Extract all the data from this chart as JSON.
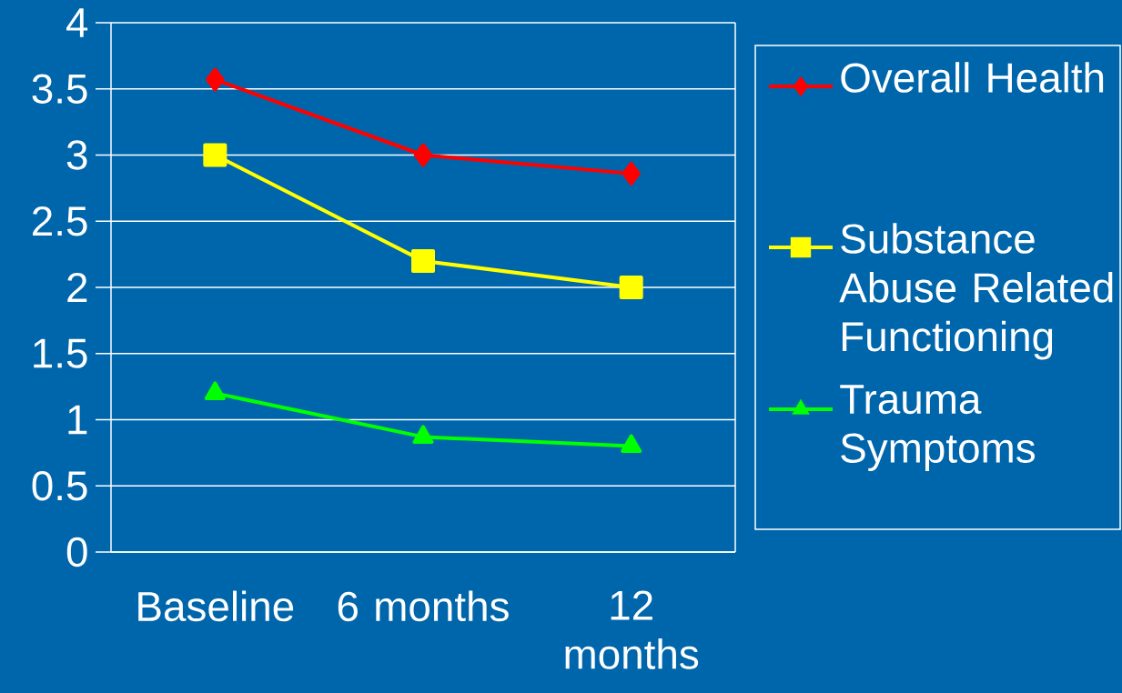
{
  "chart_data": {
    "type": "line",
    "categories": [
      "Baseline",
      "6 months",
      "12 months"
    ],
    "series": [
      {
        "name": "Overall Health",
        "color": "#ff0000",
        "marker": "diamond",
        "values": [
          3.57,
          3.0,
          2.86
        ]
      },
      {
        "name": "Substance Abuse Related Functioning",
        "color": "#ffff00",
        "marker": "square",
        "values": [
          3.0,
          2.2,
          2.0
        ]
      },
      {
        "name": "Trauma Symptoms",
        "color": "#00ff00",
        "marker": "triangle",
        "values": [
          1.2,
          0.87,
          0.8
        ]
      }
    ],
    "ylim": [
      0,
      4
    ],
    "yticks": [
      0,
      0.5,
      1,
      1.5,
      2,
      2.5,
      3,
      3.5,
      4
    ],
    "grid": "y",
    "legend": "right",
    "line_style": "solid"
  }
}
